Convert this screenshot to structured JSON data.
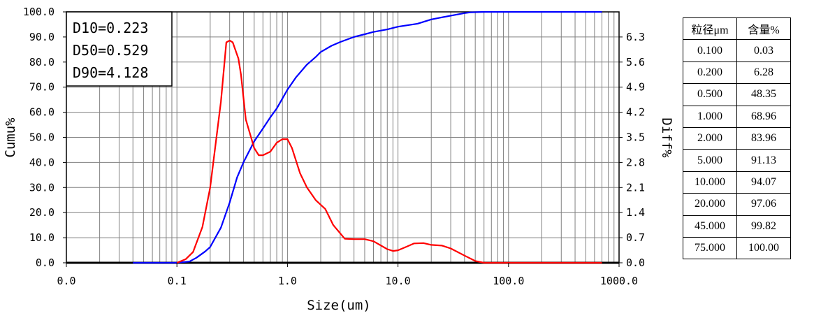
{
  "chart_data": {
    "type": "line",
    "xlabel": "Size(um)",
    "ylabel_left": "Cumu%",
    "ylabel_right": "Diff%",
    "x_scale": "log",
    "xlim": [
      0.01,
      1000
    ],
    "x_ticks": [
      "0.0",
      "0.1",
      "1.0",
      "10.0",
      "100.0",
      "1000.0"
    ],
    "x_tick_values": [
      0.01,
      0.1,
      1,
      10,
      100,
      1000
    ],
    "left_ylim": [
      0,
      100
    ],
    "left_ticks": [
      "0.0",
      "10.0",
      "20.0",
      "30.0",
      "40.0",
      "50.0",
      "60.0",
      "70.0",
      "80.0",
      "90.0",
      "100.0"
    ],
    "left_tick_values": [
      0,
      10,
      20,
      30,
      40,
      50,
      60,
      70,
      80,
      90,
      100
    ],
    "right_ylim": [
      0,
      7.0
    ],
    "right_ticks": [
      "0.0",
      "0.7",
      "1.4",
      "2.1",
      "2.8",
      "3.5",
      "4.2",
      "4.9",
      "5.6",
      "6.3"
    ],
    "right_tick_values": [
      0,
      0.7,
      1.4,
      2.1,
      2.8,
      3.5,
      4.2,
      4.9,
      5.6,
      6.3
    ],
    "grid": true,
    "d_values": [
      "D10=0.223",
      "D50=0.529",
      "D90=4.128"
    ],
    "series": [
      {
        "name": "Cumu%",
        "axis": "left",
        "color": "#0000ff",
        "x": [
          0.04,
          0.1,
          0.13,
          0.15,
          0.18,
          0.2,
          0.25,
          0.3,
          0.35,
          0.4,
          0.5,
          0.6,
          0.7,
          0.8,
          1.0,
          1.2,
          1.5,
          1.8,
          2.0,
          2.5,
          3.0,
          4.0,
          5.0,
          6.0,
          8.0,
          10.0,
          15.0,
          20.0,
          30.0,
          40.0,
          45.0,
          60.0,
          75.0,
          100.0,
          300.0,
          700.0
        ],
        "y": [
          0,
          0.03,
          0.5,
          2.0,
          4.5,
          6.3,
          14,
          24,
          34,
          40,
          48.4,
          53.5,
          58,
          61.5,
          69,
          74,
          79,
          82,
          84,
          86.5,
          88,
          90,
          91.1,
          92,
          93,
          94.1,
          95.3,
          97,
          98.5,
          99.5,
          99.8,
          100,
          100,
          100,
          100,
          100
        ]
      },
      {
        "name": "Diff%",
        "axis": "right",
        "color": "#ff0000",
        "x": [
          0.1,
          0.12,
          0.14,
          0.17,
          0.2,
          0.25,
          0.28,
          0.3,
          0.32,
          0.36,
          0.38,
          0.42,
          0.5,
          0.55,
          0.6,
          0.7,
          0.8,
          0.9,
          1.0,
          1.1,
          1.3,
          1.5,
          1.8,
          2.2,
          2.6,
          3.3,
          4.0,
          5.0,
          6.0,
          8.0,
          9.0,
          10.0,
          12.0,
          14.0,
          17.0,
          20.0,
          25.0,
          30.0,
          40.0,
          50.0,
          60.0,
          700.0
        ],
        "y": [
          0,
          0.1,
          0.3,
          1.0,
          2.1,
          4.5,
          6.15,
          6.2,
          6.15,
          5.7,
          5.25,
          4.0,
          3.2,
          3.0,
          3.0,
          3.1,
          3.35,
          3.45,
          3.45,
          3.2,
          2.5,
          2.1,
          1.75,
          1.5,
          1.05,
          0.67,
          0.66,
          0.66,
          0.6,
          0.38,
          0.33,
          0.35,
          0.45,
          0.54,
          0.55,
          0.5,
          0.48,
          0.4,
          0.2,
          0.05,
          0,
          0
        ]
      }
    ]
  },
  "table": {
    "headers": [
      "粒径μm",
      "含量%"
    ],
    "rows": [
      [
        "0.100",
        "0.03"
      ],
      [
        "0.200",
        "6.28"
      ],
      [
        "0.500",
        "48.35"
      ],
      [
        "1.000",
        "68.96"
      ],
      [
        "2.000",
        "83.96"
      ],
      [
        "5.000",
        "91.13"
      ],
      [
        "10.000",
        "94.07"
      ],
      [
        "20.000",
        "97.06"
      ],
      [
        "45.000",
        "99.82"
      ],
      [
        "75.000",
        "100.00"
      ]
    ]
  }
}
